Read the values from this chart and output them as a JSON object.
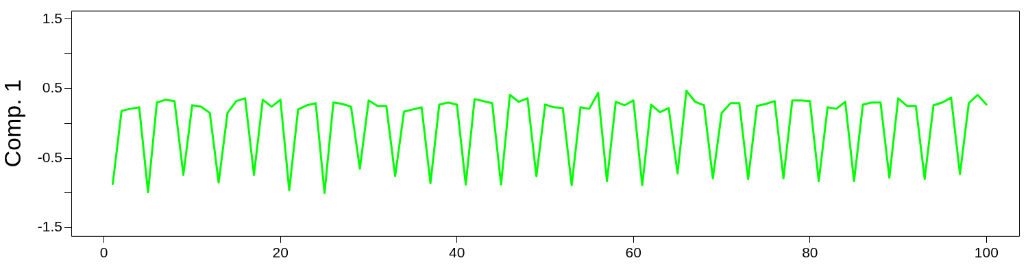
{
  "chart_data": {
    "type": "line",
    "ylabel": "Comp. 1",
    "x": [
      1,
      2,
      3,
      4,
      5,
      6,
      7,
      8,
      9,
      10,
      11,
      12,
      13,
      14,
      15,
      16,
      17,
      18,
      19,
      20,
      21,
      22,
      23,
      24,
      25,
      26,
      27,
      28,
      29,
      30,
      31,
      32,
      33,
      34,
      35,
      36,
      37,
      38,
      39,
      40,
      41,
      42,
      43,
      44,
      45,
      46,
      47,
      48,
      49,
      50,
      51,
      52,
      53,
      54,
      55,
      56,
      57,
      58,
      59,
      60,
      61,
      62,
      63,
      64,
      65,
      66,
      67,
      68,
      69,
      70,
      71,
      72,
      73,
      74,
      75,
      76,
      77,
      78,
      79,
      80,
      81,
      82,
      83,
      84,
      85,
      86,
      87,
      88,
      89,
      90,
      91,
      92,
      93,
      94,
      95,
      96,
      97,
      98,
      99,
      100
    ],
    "series": [
      {
        "color": "#00ff00",
        "values": [
          -0.87,
          0.18,
          0.21,
          0.23,
          -0.99,
          0.3,
          0.34,
          0.32,
          -0.74,
          0.26,
          0.24,
          0.15,
          -0.85,
          0.15,
          0.32,
          0.36,
          -0.74,
          0.34,
          0.24,
          0.34,
          -0.96,
          0.2,
          0.26,
          0.29,
          -1.0,
          0.3,
          0.28,
          0.24,
          -0.65,
          0.33,
          0.25,
          0.25,
          -0.76,
          0.17,
          0.2,
          0.23,
          -0.86,
          0.27,
          0.3,
          0.27,
          -0.88,
          0.35,
          0.32,
          0.29,
          -0.88,
          0.41,
          0.31,
          0.36,
          -0.76,
          0.27,
          0.23,
          0.22,
          -0.89,
          0.23,
          0.21,
          0.44,
          -0.83,
          0.31,
          0.26,
          0.33,
          -0.89,
          0.27,
          0.16,
          0.22,
          -0.72,
          0.47,
          0.31,
          0.26,
          -0.79,
          0.15,
          0.29,
          0.29,
          -0.8,
          0.25,
          0.28,
          0.32,
          -0.79,
          0.33,
          0.33,
          0.32,
          -0.83,
          0.23,
          0.21,
          0.31,
          -0.83,
          0.27,
          0.3,
          0.3,
          -0.78,
          0.36,
          0.25,
          0.25,
          -0.8,
          0.26,
          0.3,
          0.37,
          -0.73,
          0.29,
          0.41,
          0.27
        ]
      }
    ],
    "xlim": [
      -3.7,
      103.7
    ],
    "xticks": [
      0,
      20,
      40,
      60,
      80,
      100
    ],
    "ylim": [
      -1.62,
      1.62
    ],
    "yticks": [
      -1.5,
      {
        "value": -1,
        "label": null
      },
      -0.5,
      {
        "value": 0,
        "label": null
      },
      0.5,
      {
        "value": 1,
        "label": null
      },
      1.5
    ],
    "grid": false,
    "legend": false,
    "marker": "none",
    "line_style": "solid"
  }
}
